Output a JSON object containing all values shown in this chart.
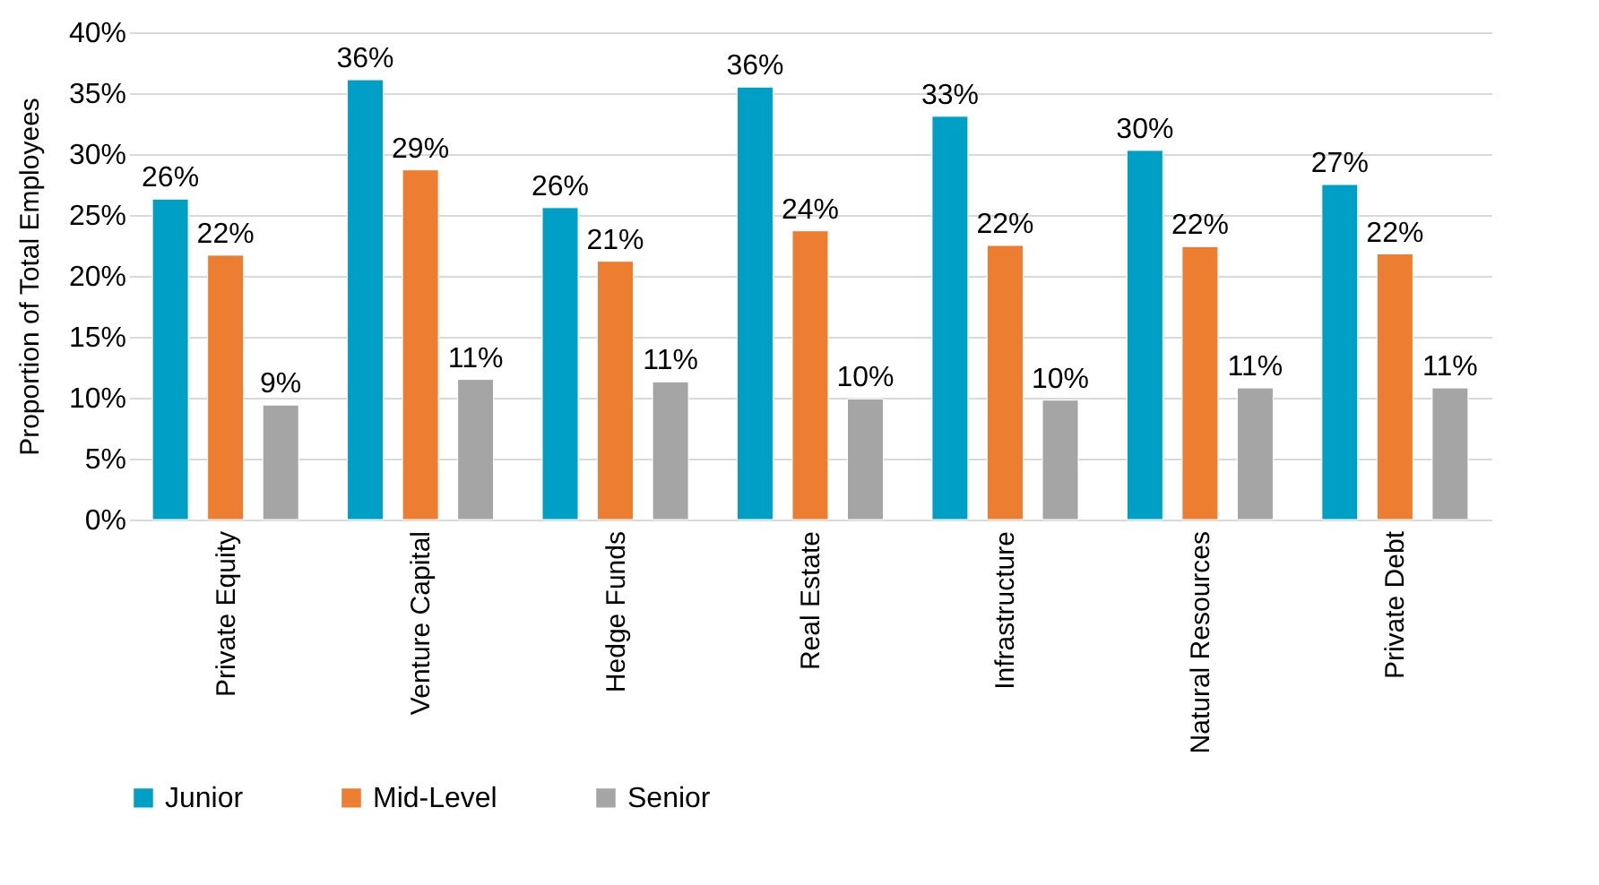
{
  "chart_data": {
    "type": "bar",
    "ylabel": "Proportion of Total Employees",
    "categories": [
      "Private Equity",
      "Venture Capital",
      "Hedge Funds",
      "Real Estate",
      "Infrastructure",
      "Natural Resources",
      "Private Debt"
    ],
    "series": [
      {
        "name": "Junior",
        "color": "#00a0c6",
        "values": [
          26.3,
          36.1,
          25.6,
          35.5,
          33.1,
          30.3,
          27.5
        ],
        "value_labels": [
          "26%",
          "36%",
          "26%",
          "36%",
          "33%",
          "30%",
          "27%"
        ]
      },
      {
        "name": "Mid-Level",
        "color": "#ed7d31",
        "values": [
          21.7,
          28.7,
          21.2,
          23.7,
          22.5,
          22.4,
          21.8
        ],
        "value_labels": [
          "22%",
          "29%",
          "21%",
          "24%",
          "22%",
          "22%",
          "22%"
        ]
      },
      {
        "name": "Senior",
        "color": "#a5a5a5",
        "values": [
          9.4,
          11.5,
          11.3,
          9.9,
          9.8,
          10.8,
          10.8
        ],
        "value_labels": [
          "9%",
          "11%",
          "11%",
          "10%",
          "10%",
          "11%",
          "11%"
        ]
      }
    ],
    "ylim": [
      0,
      40
    ],
    "yticks": [
      {
        "value": 0,
        "label": "0%"
      },
      {
        "value": 5,
        "label": "5%"
      },
      {
        "value": 10,
        "label": "10%"
      },
      {
        "value": 15,
        "label": "15%"
      },
      {
        "value": 20,
        "label": "20%"
      },
      {
        "value": 25,
        "label": "25%"
      },
      {
        "value": 30,
        "label": "30%"
      },
      {
        "value": 35,
        "label": "35%"
      },
      {
        "value": 40,
        "label": "40%"
      }
    ],
    "grid": "y",
    "legend": "bottom"
  }
}
